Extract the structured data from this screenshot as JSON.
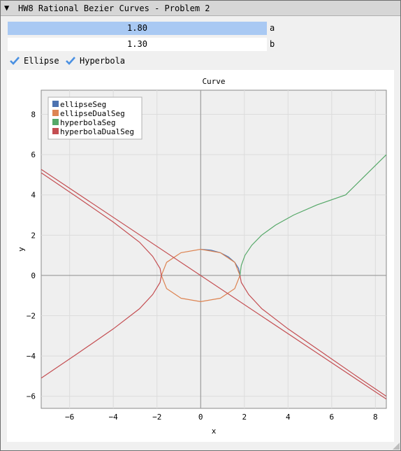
{
  "window": {
    "title": "HW8 Rational Bezier Curves - Problem 2",
    "collapse_glyph": "▼"
  },
  "sliders": [
    {
      "value": "1.80",
      "label": "a"
    },
    {
      "value": "1.30",
      "label": "b"
    }
  ],
  "checkboxes": [
    {
      "label": "Ellipse",
      "checked": true
    },
    {
      "label": "Hyperbola",
      "checked": true
    }
  ],
  "colors": {
    "accent": "#4a90e2",
    "slider_active": "#a9c9f3",
    "plot_bg": "#efefef"
  },
  "chart_data": {
    "type": "line",
    "title": "Curve",
    "xlabel": "x",
    "ylabel": "y",
    "xlim": [
      -7.3,
      8.5
    ],
    "ylim": [
      -6.6,
      9.2
    ],
    "xticks": [
      -6,
      -4,
      -2,
      0,
      2,
      4,
      6,
      8
    ],
    "yticks": [
      -6,
      -4,
      -2,
      0,
      2,
      4,
      6,
      8
    ],
    "grid": true,
    "legend_position": "top-left",
    "parameters": {
      "a": 1.8,
      "b": 1.3
    },
    "series": [
      {
        "name": "ellipseSeg",
        "color": "#4c72b0",
        "x": [
          0,
          0.47,
          0.9,
          1.27,
          1.56,
          1.74,
          1.8
        ],
        "y": [
          1.3,
          1.26,
          1.13,
          0.92,
          0.65,
          0.34,
          0
        ]
      },
      {
        "name": "ellipseDualSeg",
        "color": "#dd8452",
        "x": [
          1.8,
          1.56,
          0.9,
          0,
          -0.9,
          -1.56,
          -1.8,
          -1.56,
          -0.9,
          0,
          0.9,
          1.56,
          1.8
        ],
        "y": [
          0,
          -0.65,
          -1.13,
          -1.3,
          -1.13,
          -0.65,
          0,
          0.65,
          1.13,
          1.3,
          1.13,
          0.65,
          0
        ]
      },
      {
        "name": "hyperbolaSeg",
        "color": "#55a868",
        "x": [
          1.8,
          1.86,
          2.03,
          2.34,
          2.79,
          3.43,
          4.26,
          5.32,
          6.64,
          8.5
        ],
        "y": [
          0,
          0.5,
          1.0,
          1.5,
          2.0,
          2.5,
          3.0,
          3.5,
          4.0,
          6.0
        ]
      },
      {
        "name": "hyperbolaDualSeg",
        "color": "#c44e52",
        "x": [
          -7.3,
          -5.6,
          -4.0,
          -2.8,
          -2.2,
          -1.86,
          -1.8,
          -1.86,
          -2.2,
          -2.8,
          -4.0,
          -5.6,
          -7.3
        ],
        "y": [
          5.1,
          3.85,
          2.65,
          1.65,
          0.95,
          0.35,
          0,
          -0.35,
          -0.95,
          -1.65,
          -2.65,
          -3.85,
          -5.1
        ]
      },
      {
        "name": "hyperbolaDualSeg",
        "color": "#c44e52",
        "x": [
          -7.3,
          8.5
        ],
        "y": [
          5.27,
          -6.14
        ]
      },
      {
        "name": "hyperbolaDualSeg",
        "color": "#c44e52",
        "x": [
          1.8,
          1.86,
          2.2,
          2.8,
          4.0,
          5.6,
          7.2,
          8.5
        ],
        "y": [
          0,
          -0.35,
          -0.95,
          -1.65,
          -2.65,
          -3.85,
          -5.05,
          -6.0
        ]
      }
    ]
  }
}
